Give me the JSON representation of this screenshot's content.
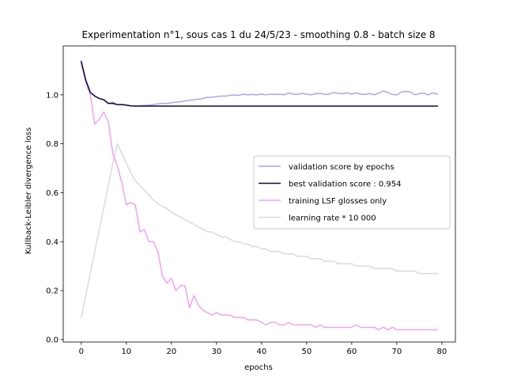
{
  "chart_data": {
    "type": "line",
    "title": "Experimentation n°1, sous cas 1 du 24/5/23 - smoothing 0.8 - batch size 8",
    "xlabel": "epochs",
    "ylabel": "Kullback-Leibler divergence loss",
    "xlim": [
      -4,
      83
    ],
    "ylim": [
      -0.01,
      1.2
    ],
    "xticks": [
      0,
      10,
      20,
      30,
      40,
      50,
      60,
      70,
      80
    ],
    "yticks": [
      0.0,
      0.2,
      0.4,
      0.6,
      0.8,
      1.0
    ],
    "ytick_labels": [
      "0.0",
      "0.2",
      "0.4",
      "0.6",
      "0.8",
      "1.0"
    ],
    "grid": false,
    "legend_position": "center-right",
    "series": [
      {
        "name": "validation score by epochs",
        "color": "#a7a7f0",
        "x": [
          0,
          1,
          2,
          3,
          4,
          5,
          6,
          7,
          8,
          9,
          10,
          11,
          12,
          13,
          14,
          15,
          16,
          17,
          18,
          19,
          20,
          21,
          22,
          23,
          24,
          25,
          26,
          27,
          28,
          29,
          30,
          31,
          32,
          33,
          34,
          35,
          36,
          37,
          38,
          39,
          40,
          41,
          42,
          43,
          44,
          45,
          46,
          47,
          48,
          49,
          50,
          51,
          52,
          53,
          54,
          55,
          56,
          57,
          58,
          59,
          60,
          61,
          62,
          63,
          64,
          65,
          66,
          67,
          68,
          69,
          70,
          71,
          72,
          73,
          74,
          75,
          76,
          77,
          78,
          79
        ],
        "values": [
          1.14,
          1.06,
          1.01,
          0.995,
          0.985,
          0.98,
          0.965,
          0.97,
          0.96,
          0.96,
          0.958,
          0.955,
          0.955,
          0.955,
          0.957,
          0.958,
          0.96,
          0.963,
          0.965,
          0.965,
          0.968,
          0.97,
          0.972,
          0.975,
          0.978,
          0.98,
          0.982,
          0.985,
          0.99,
          0.99,
          0.993,
          0.995,
          0.995,
          0.998,
          1.0,
          0.998,
          1.003,
          1.0,
          1.002,
          1.0,
          1.003,
          1.0,
          1.003,
          1.002,
          1.003,
          1.0,
          1.008,
          1.003,
          1.002,
          1.006,
          1.003,
          1.0,
          1.005,
          1.006,
          1.002,
          1.003,
          1.01,
          1.006,
          1.005,
          1.008,
          1.003,
          1.008,
          1.003,
          1.002,
          1.005,
          1.0,
          1.007,
          1.016,
          1.01,
          1.002,
          1.0,
          1.012,
          1.014,
          1.012,
          1.0,
          1.005,
          1.007,
          1.0,
          1.008,
          1.003
        ]
      },
      {
        "name": "best validation score : 0.954",
        "color": "#0a0a3c",
        "x": [
          0,
          1,
          2,
          3,
          4,
          5,
          6,
          7,
          8,
          9,
          10,
          11,
          12,
          13,
          14,
          15,
          16,
          17,
          18,
          19,
          20,
          21,
          22,
          23,
          24,
          25,
          26,
          27,
          28,
          29,
          30,
          31,
          32,
          33,
          34,
          35,
          36,
          37,
          38,
          39,
          40,
          41,
          42,
          43,
          44,
          45,
          46,
          47,
          48,
          49,
          50,
          51,
          52,
          53,
          54,
          55,
          56,
          57,
          58,
          59,
          60,
          61,
          62,
          63,
          64,
          65,
          66,
          67,
          68,
          69,
          70,
          71,
          72,
          73,
          74,
          75,
          76,
          77,
          78,
          79
        ],
        "values": [
          1.135,
          1.06,
          1.01,
          0.995,
          0.985,
          0.98,
          0.965,
          0.965,
          0.96,
          0.96,
          0.958,
          0.955,
          0.954,
          0.954,
          0.954,
          0.954,
          0.954,
          0.954,
          0.954,
          0.954,
          0.954,
          0.954,
          0.954,
          0.954,
          0.954,
          0.954,
          0.954,
          0.954,
          0.954,
          0.954,
          0.954,
          0.954,
          0.954,
          0.954,
          0.954,
          0.954,
          0.954,
          0.954,
          0.954,
          0.954,
          0.954,
          0.954,
          0.954,
          0.954,
          0.954,
          0.954,
          0.954,
          0.954,
          0.954,
          0.954,
          0.954,
          0.954,
          0.954,
          0.954,
          0.954,
          0.954,
          0.954,
          0.954,
          0.954,
          0.954,
          0.954,
          0.954,
          0.954,
          0.954,
          0.954,
          0.954,
          0.954,
          0.954,
          0.954,
          0.954,
          0.954,
          0.954,
          0.954,
          0.954,
          0.954,
          0.954,
          0.954,
          0.954,
          0.954,
          0.954
        ]
      },
      {
        "name": "training LSF glosses only",
        "color": "#f5a0f0",
        "x": [
          0,
          1,
          2,
          3,
          4,
          5,
          6,
          7,
          8,
          9,
          10,
          11,
          12,
          13,
          14,
          15,
          16,
          17,
          18,
          19,
          20,
          21,
          22,
          23,
          24,
          25,
          26,
          27,
          28,
          29,
          30,
          31,
          32,
          33,
          34,
          35,
          36,
          37,
          38,
          39,
          40,
          41,
          42,
          43,
          44,
          45,
          46,
          47,
          48,
          49,
          50,
          51,
          52,
          53,
          54,
          55,
          56,
          57,
          58,
          59,
          60,
          61,
          62,
          63,
          64,
          65,
          66,
          67,
          68,
          69,
          70,
          71,
          72,
          73,
          74,
          75,
          76,
          77,
          78,
          79
        ],
        "values": [
          1.13,
          1.05,
          1.0,
          0.88,
          0.9,
          0.93,
          0.89,
          0.76,
          0.71,
          0.64,
          0.55,
          0.56,
          0.55,
          0.44,
          0.45,
          0.4,
          0.4,
          0.36,
          0.26,
          0.23,
          0.25,
          0.2,
          0.22,
          0.22,
          0.13,
          0.18,
          0.14,
          0.12,
          0.11,
          0.1,
          0.11,
          0.1,
          0.1,
          0.1,
          0.09,
          0.09,
          0.09,
          0.08,
          0.08,
          0.08,
          0.07,
          0.06,
          0.07,
          0.07,
          0.06,
          0.06,
          0.07,
          0.06,
          0.06,
          0.06,
          0.06,
          0.06,
          0.05,
          0.06,
          0.05,
          0.05,
          0.05,
          0.05,
          0.05,
          0.05,
          0.05,
          0.06,
          0.05,
          0.05,
          0.05,
          0.05,
          0.04,
          0.05,
          0.04,
          0.05,
          0.04,
          0.04,
          0.04,
          0.04,
          0.04,
          0.04,
          0.04,
          0.04,
          0.04,
          0.04
        ]
      },
      {
        "name": "learning rate * 10 000",
        "color": "#dadada",
        "x": [
          0,
          1,
          2,
          3,
          4,
          5,
          6,
          7,
          8,
          9,
          10,
          11,
          12,
          13,
          14,
          15,
          16,
          17,
          18,
          19,
          20,
          21,
          22,
          23,
          24,
          25,
          26,
          27,
          28,
          29,
          30,
          31,
          32,
          33,
          34,
          35,
          36,
          37,
          38,
          39,
          40,
          41,
          42,
          43,
          44,
          45,
          46,
          47,
          48,
          49,
          50,
          51,
          52,
          53,
          54,
          55,
          56,
          57,
          58,
          59,
          60,
          61,
          62,
          63,
          64,
          65,
          66,
          67,
          68,
          69,
          70,
          71,
          72,
          73,
          74,
          75,
          76,
          77,
          78,
          79
        ],
        "values": [
          0.09,
          0.18,
          0.27,
          0.36,
          0.45,
          0.54,
          0.63,
          0.72,
          0.8,
          0.76,
          0.72,
          0.68,
          0.65,
          0.63,
          0.61,
          0.59,
          0.57,
          0.555,
          0.545,
          0.535,
          0.52,
          0.51,
          0.5,
          0.49,
          0.48,
          0.47,
          0.46,
          0.45,
          0.44,
          0.44,
          0.43,
          0.42,
          0.42,
          0.41,
          0.4,
          0.4,
          0.39,
          0.39,
          0.38,
          0.38,
          0.37,
          0.37,
          0.36,
          0.36,
          0.36,
          0.35,
          0.35,
          0.35,
          0.34,
          0.34,
          0.34,
          0.33,
          0.33,
          0.33,
          0.32,
          0.32,
          0.32,
          0.31,
          0.31,
          0.31,
          0.31,
          0.3,
          0.3,
          0.3,
          0.3,
          0.29,
          0.29,
          0.29,
          0.29,
          0.29,
          0.28,
          0.28,
          0.28,
          0.28,
          0.28,
          0.27,
          0.27,
          0.27,
          0.27,
          0.27
        ]
      }
    ]
  }
}
